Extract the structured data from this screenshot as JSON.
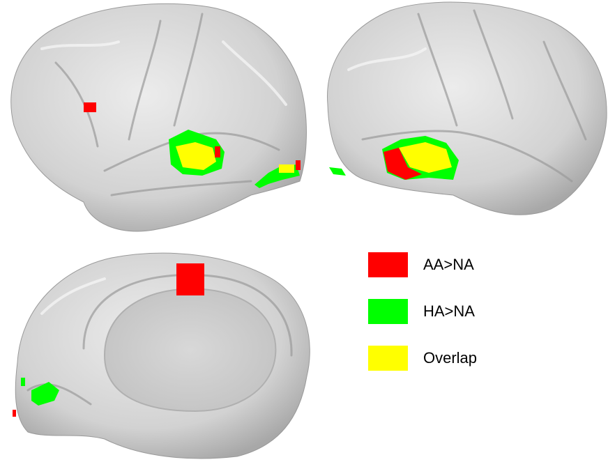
{
  "legend": {
    "items": [
      {
        "label": "AA>NA",
        "color": "#ff0000"
      },
      {
        "label": "HA>NA",
        "color": "#00ff00"
      },
      {
        "label": "Overlap",
        "color": "#ffff00"
      }
    ]
  }
}
